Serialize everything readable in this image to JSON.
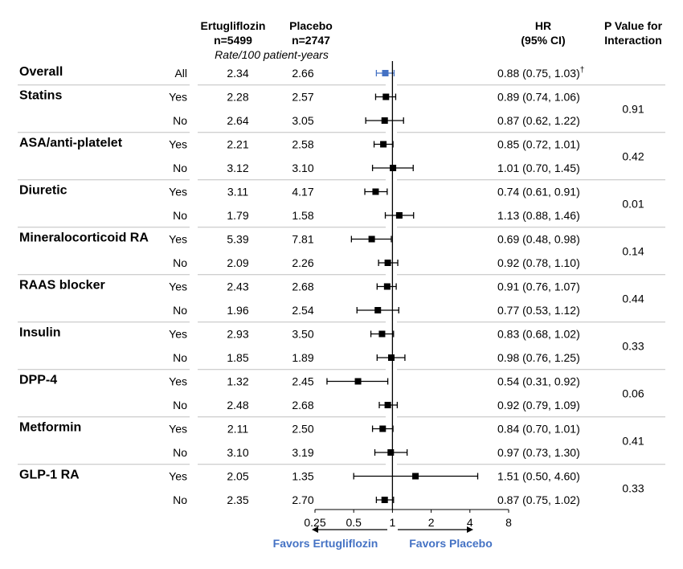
{
  "headers": {
    "ertu_line1": "Ertugliflozin",
    "ertu_line2": "n=5499",
    "placebo_line1": "Placebo",
    "placebo_line2": "n=2747",
    "rate_note": "Rate/100 patient-years",
    "hr_line1": "HR",
    "hr_line2": "(95% CI)",
    "p_line1": "P Value for",
    "p_line2": "Interaction"
  },
  "colors": {
    "overall": "#4472C4",
    "subgroup": "#000000",
    "favors": "#4472C4",
    "divider": "#BFBFBF"
  },
  "chart_data": {
    "type": "forest",
    "x_scale": "log2",
    "xlim": [
      0.25,
      8
    ],
    "reference_line": 1,
    "x_ticks": [
      "0.25",
      "0.5",
      "1",
      "2",
      "4",
      "8"
    ],
    "favors_left": "Favors Ertugliflozin",
    "favors_right": "Favors Placebo",
    "groups": [
      {
        "name": "Overall",
        "p_value": "",
        "rows": [
          {
            "label": "All",
            "ertu": "2.34",
            "placebo": "2.66",
            "hr": 0.88,
            "lo": 0.75,
            "hi": 1.03,
            "hr_text": "0.88 (0.75, 1.03)",
            "note": "†",
            "overall": true
          }
        ]
      },
      {
        "name": "Statins",
        "p_value": "0.91",
        "rows": [
          {
            "label": "Yes",
            "ertu": "2.28",
            "placebo": "2.57",
            "hr": 0.89,
            "lo": 0.74,
            "hi": 1.06,
            "hr_text": "0.89 (0.74, 1.06)"
          },
          {
            "label": "No",
            "ertu": "2.64",
            "placebo": "3.05",
            "hr": 0.87,
            "lo": 0.62,
            "hi": 1.22,
            "hr_text": "0.87 (0.62, 1.22)"
          }
        ]
      },
      {
        "name": "ASA/anti-platelet",
        "p_value": "0.42",
        "rows": [
          {
            "label": "Yes",
            "ertu": "2.21",
            "placebo": "2.58",
            "hr": 0.85,
            "lo": 0.72,
            "hi": 1.01,
            "hr_text": "0.85 (0.72, 1.01)"
          },
          {
            "label": "No",
            "ertu": "3.12",
            "placebo": "3.10",
            "hr": 1.01,
            "lo": 0.7,
            "hi": 1.45,
            "hr_text": "1.01 (0.70, 1.45)"
          }
        ]
      },
      {
        "name": "Diuretic",
        "p_value": "0.01",
        "rows": [
          {
            "label": "Yes",
            "ertu": "3.11",
            "placebo": "4.17",
            "hr": 0.74,
            "lo": 0.61,
            "hi": 0.91,
            "hr_text": "0.74 (0.61, 0.91)"
          },
          {
            "label": "No",
            "ertu": "1.79",
            "placebo": "1.58",
            "hr": 1.13,
            "lo": 0.88,
            "hi": 1.46,
            "hr_text": "1.13 (0.88, 1.46)"
          }
        ]
      },
      {
        "name": "Mineralocorticoid RA",
        "p_value": "0.14",
        "rows": [
          {
            "label": "Yes",
            "ertu": "5.39",
            "placebo": "7.81",
            "hr": 0.69,
            "lo": 0.48,
            "hi": 0.98,
            "hr_text": "0.69 (0.48, 0.98)"
          },
          {
            "label": "No",
            "ertu": "2.09",
            "placebo": "2.26",
            "hr": 0.92,
            "lo": 0.78,
            "hi": 1.1,
            "hr_text": "0.92 (0.78, 1.10)"
          }
        ]
      },
      {
        "name": "RAAS blocker",
        "p_value": "0.44",
        "rows": [
          {
            "label": "Yes",
            "ertu": "2.43",
            "placebo": "2.68",
            "hr": 0.91,
            "lo": 0.76,
            "hi": 1.07,
            "hr_text": "0.91 (0.76, 1.07)"
          },
          {
            "label": "No",
            "ertu": "1.96",
            "placebo": "2.54",
            "hr": 0.77,
            "lo": 0.53,
            "hi": 1.12,
            "hr_text": "0.77 (0.53, 1.12)"
          }
        ]
      },
      {
        "name": "Insulin",
        "p_value": "0.33",
        "rows": [
          {
            "label": "Yes",
            "ertu": "2.93",
            "placebo": "3.50",
            "hr": 0.83,
            "lo": 0.68,
            "hi": 1.02,
            "hr_text": "0.83 (0.68, 1.02)"
          },
          {
            "label": "No",
            "ertu": "1.85",
            "placebo": "1.89",
            "hr": 0.98,
            "lo": 0.76,
            "hi": 1.25,
            "hr_text": "0.98 (0.76, 1.25)"
          }
        ]
      },
      {
        "name": "DPP-4",
        "p_value": "0.06",
        "rows": [
          {
            "label": "Yes",
            "ertu": "1.32",
            "placebo": "2.45",
            "hr": 0.54,
            "lo": 0.31,
            "hi": 0.92,
            "hr_text": "0.54 (0.31, 0.92)"
          },
          {
            "label": "No",
            "ertu": "2.48",
            "placebo": "2.68",
            "hr": 0.92,
            "lo": 0.79,
            "hi": 1.09,
            "hr_text": "0.92 (0.79, 1.09)"
          }
        ]
      },
      {
        "name": "Metformin",
        "p_value": "0.41",
        "rows": [
          {
            "label": "Yes",
            "ertu": "2.11",
            "placebo": "2.50",
            "hr": 0.84,
            "lo": 0.7,
            "hi": 1.01,
            "hr_text": "0.84 (0.70, 1.01)"
          },
          {
            "label": "No",
            "ertu": "3.10",
            "placebo": "3.19",
            "hr": 0.97,
            "lo": 0.73,
            "hi": 1.3,
            "hr_text": "0.97 (0.73, 1.30)"
          }
        ]
      },
      {
        "name": "GLP-1 RA",
        "p_value": "0.33",
        "rows": [
          {
            "label": "Yes",
            "ertu": "2.05",
            "placebo": "1.35",
            "hr": 1.51,
            "lo": 0.5,
            "hi": 4.6,
            "hr_text": "1.51 (0.50, 4.60)"
          },
          {
            "label": "No",
            "ertu": "2.35",
            "placebo": "2.70",
            "hr": 0.87,
            "lo": 0.75,
            "hi": 1.02,
            "hr_text": "0.87 (0.75, 1.02)"
          }
        ]
      }
    ]
  }
}
